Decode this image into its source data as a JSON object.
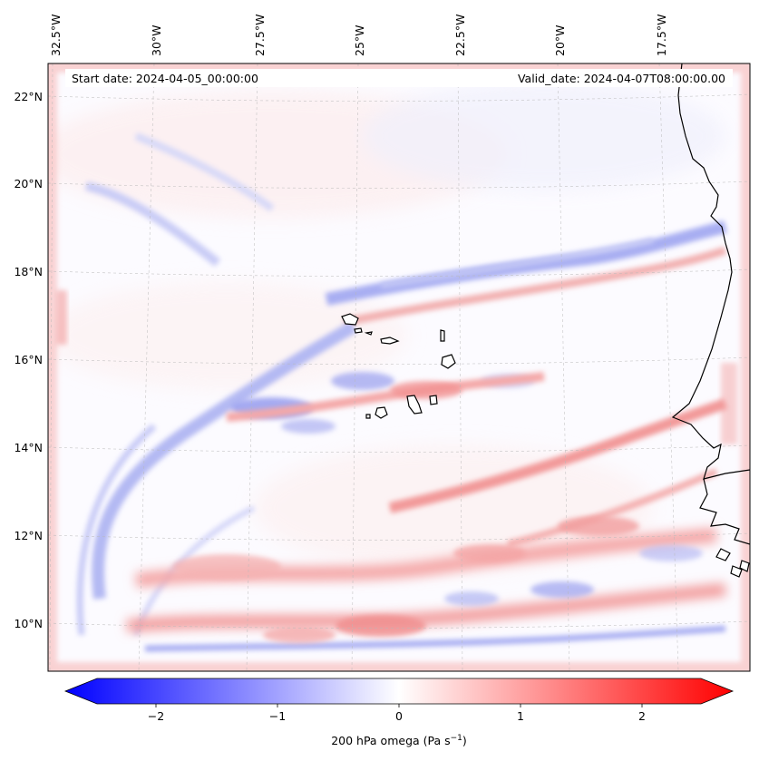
{
  "header": {
    "start_date": "Start date: 2024-04-05_00:00:00",
    "valid_date": "Valid_date: 2024-04-07T08:00:00.00"
  },
  "axes": {
    "lon_labels": [
      "32.5°W",
      "30°W",
      "27.5°W",
      "25°W",
      "22.5°W",
      "20°W",
      "17.5°W"
    ],
    "lat_labels": [
      "22°N",
      "20°N",
      "18°N",
      "16°N",
      "14°N",
      "12°N",
      "10°N"
    ]
  },
  "colorbar": {
    "ticks": [
      "−2",
      "−1",
      "0",
      "1",
      "2"
    ],
    "label_main": "200 hPa omega (Pa s",
    "label_sup": "−1",
    "label_end": ")",
    "color_min": "#0000ff",
    "color_mid": "#ffffff",
    "color_max": "#ff0000"
  },
  "map": {
    "projection": "lambert-conformal",
    "field": "200 hPa omega",
    "coastline_color": "#000000",
    "gridline_style": "dashed-grey"
  }
}
